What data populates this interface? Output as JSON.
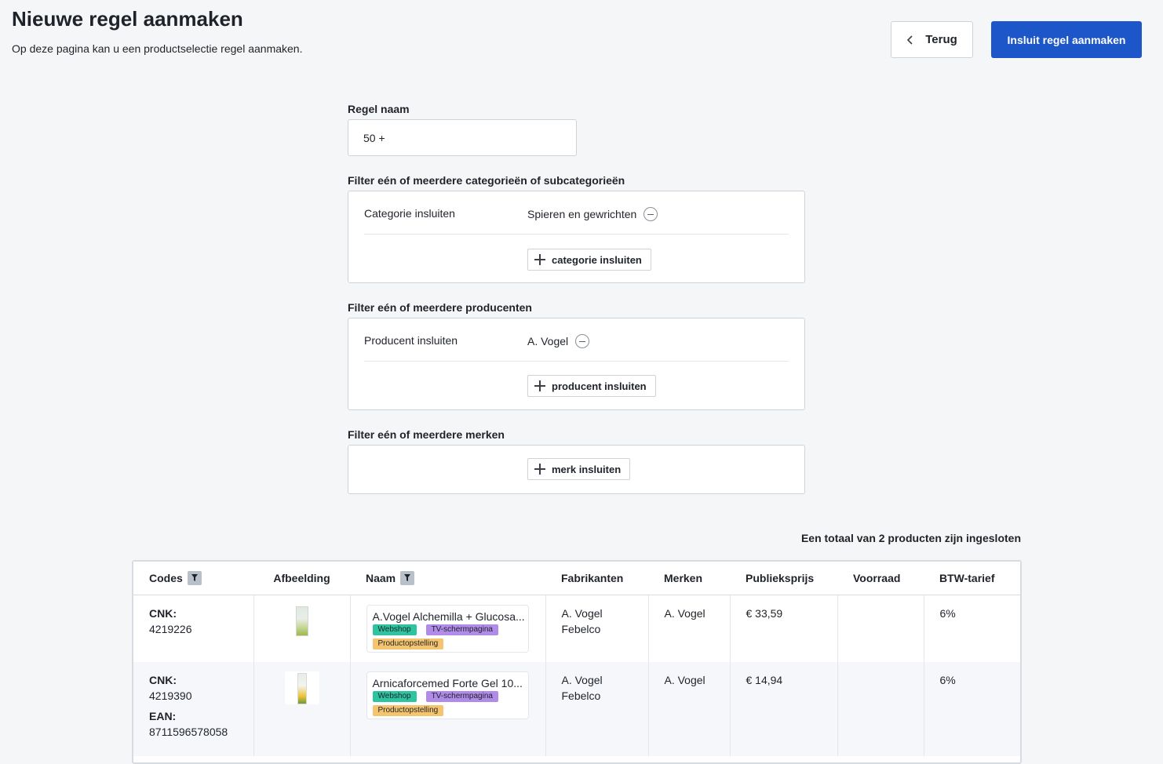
{
  "header": {
    "title": "Nieuwe regel aanmaken",
    "subtitle": "Op deze pagina kan u een productselectie regel aanmaken.",
    "back_label": "Terug",
    "primary_label": "Insluit regel aanmaken"
  },
  "form": {
    "rule_name_label": "Regel naam",
    "rule_name_value": "50 +",
    "category_section": {
      "title": "Filter eén of meerdere categorieën of subcategorieën",
      "row_label": "Categorie insluiten",
      "value": "Spieren en gewrichten",
      "add_label": "categorie insluiten"
    },
    "producer_section": {
      "title": "Filter eén of meerdere producenten",
      "row_label": "Producent insluiten",
      "value": "A. Vogel",
      "add_label": "producent insluiten"
    },
    "brand_section": {
      "title": "Filter eén of meerdere merken",
      "add_label": "merk insluiten"
    }
  },
  "summary": {
    "total_text": "Een totaal van 2 producten zijn ingesloten"
  },
  "table": {
    "headers": {
      "codes": "Codes",
      "image": "Afbeelding",
      "name": "Naam",
      "manufacturers": "Fabrikanten",
      "brands": "Merken",
      "price": "Publieksprijs",
      "stock": "Voorraad",
      "vat": "BTW-tarief"
    },
    "rows": [
      {
        "cnk_label": "CNK:",
        "cnk": "4219226",
        "name": "A.Vogel Alchemilla + Glucosa...",
        "tags": [
          "Webshop",
          "TV-schermpagina",
          "Productopstelling"
        ],
        "manufacturer_1": "A. Vogel",
        "manufacturer_2": "Febelco",
        "brand": "A. Vogel",
        "price": "€ 33,59",
        "stock": "",
        "vat": "6%"
      },
      {
        "cnk_label": "CNK:",
        "cnk": "4219390",
        "ean_label": "EAN:",
        "ean": "8711596578058",
        "name": "Arnicaforcemed Forte Gel 10...",
        "tags": [
          "Webshop",
          "TV-schermpagina",
          "Productopstelling"
        ],
        "manufacturer_1": "A. Vogel",
        "manufacturer_2": "Febelco",
        "brand": "A. Vogel",
        "price": "€ 14,94",
        "stock": "",
        "vat": "6%"
      }
    ]
  }
}
